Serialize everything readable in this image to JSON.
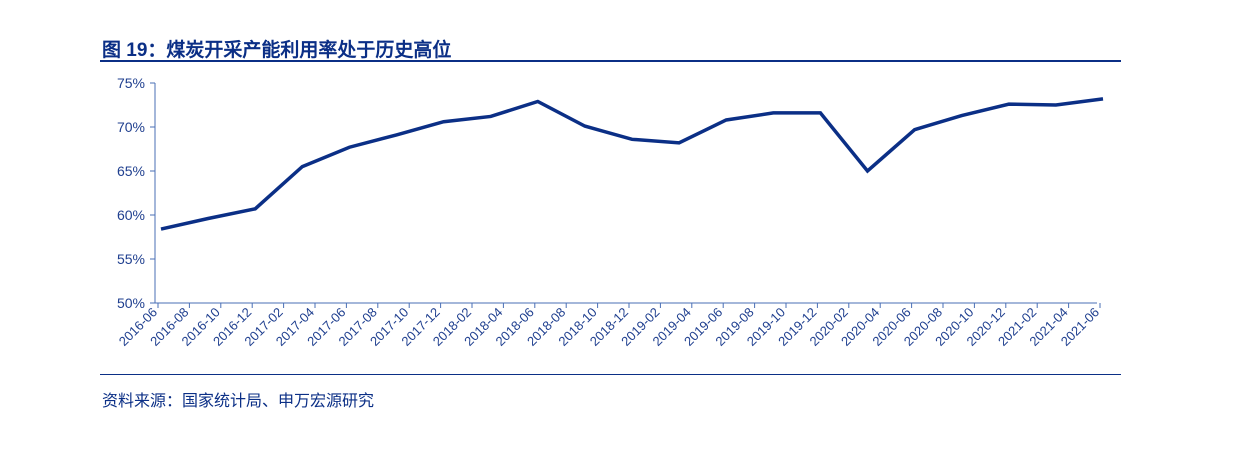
{
  "title": "图 19：煤炭开采产能利用率处于历史高位",
  "source": "资料来源：国家统计局、申万宏源研究",
  "chart_data": {
    "type": "line",
    "title": "图 19：煤炭开采产能利用率处于历史高位",
    "xlabel": "",
    "ylabel": "",
    "ylim": [
      50,
      75
    ],
    "y_ticks": [
      "50%",
      "55%",
      "60%",
      "65%",
      "70%",
      "75%"
    ],
    "x_ticks": [
      "2016-06",
      "2016-08",
      "2016-10",
      "2016-12",
      "2017-02",
      "2017-04",
      "2017-06",
      "2017-08",
      "2017-10",
      "2017-12",
      "2018-02",
      "2018-04",
      "2018-06",
      "2018-08",
      "2018-10",
      "2018-12",
      "2019-02",
      "2019-04",
      "2019-06",
      "2019-08",
      "2019-10",
      "2019-12",
      "2020-02",
      "2020-04",
      "2020-06",
      "2020-08",
      "2020-10",
      "2020-12",
      "2021-02",
      "2021-04",
      "2021-06"
    ],
    "grid": false,
    "line_color": "#0b2f86",
    "series": [
      {
        "x": [
          "2016-06",
          "2016-09",
          "2016-12",
          "2017-03",
          "2017-06",
          "2017-09",
          "2017-12",
          "2018-03",
          "2018-06",
          "2018-09",
          "2018-12",
          "2019-03",
          "2019-06",
          "2019-09",
          "2019-12",
          "2020-03",
          "2020-06",
          "2020-09",
          "2020-12",
          "2021-03",
          "2021-06"
        ],
        "values": [
          58.4,
          59.6,
          60.7,
          65.5,
          67.7,
          69.1,
          70.6,
          71.2,
          72.9,
          70.1,
          68.6,
          68.2,
          70.8,
          71.6,
          71.6,
          65.0,
          69.7,
          71.3,
          72.6,
          72.5,
          73.2
        ]
      }
    ]
  }
}
